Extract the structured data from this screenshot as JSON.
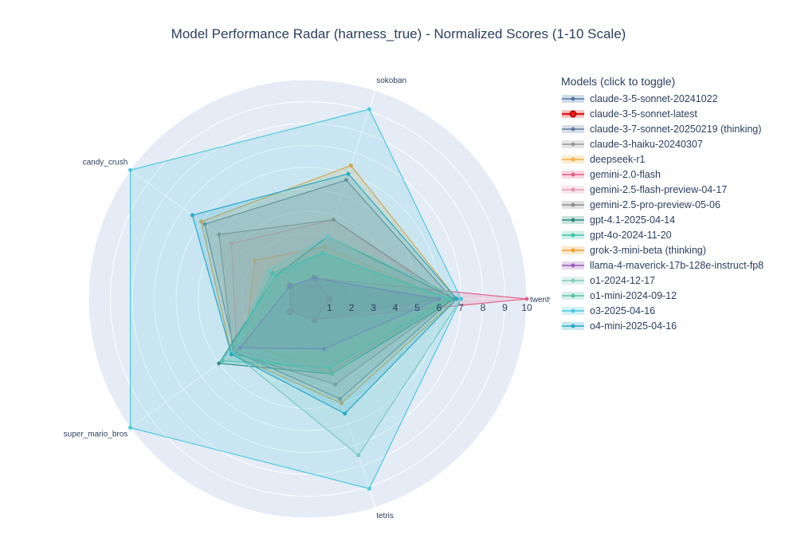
{
  "chart_data": {
    "type": "radar",
    "title": "Model Performance Radar (harness_true) - Normalized Scores (1-10 Scale)",
    "axes": [
      "twenty_forty_eight",
      "sokoban",
      "candy_crush",
      "super_mario_bros",
      "tetris"
    ],
    "axis_tick_labels": [
      "twenty_",
      "sokoban",
      "candy_crush",
      "super_mario_bros",
      "tetris"
    ],
    "radial_range": [
      0,
      10
    ],
    "radial_ticks": [
      1,
      2,
      3,
      4,
      5,
      6,
      7,
      8,
      9,
      10
    ],
    "legend": {
      "title": "Models (click to toggle)",
      "placement": "right"
    },
    "series": [
      {
        "name": "claude-3-5-sonnet-20241022",
        "color": "#4c78a8",
        "values": [
          6.0,
          1.0,
          1.0,
          1.0,
          1.0
        ]
      },
      {
        "name": "claude-3-5-sonnet-latest",
        "color": "#e31a1c",
        "values": [
          1.0,
          1.0,
          1.0,
          1.0,
          1.0
        ],
        "highlight": true
      },
      {
        "name": "claude-3-7-sonnet-20250219 (thinking)",
        "color": "#5f7f9f",
        "values": [
          6.6,
          5.7,
          5.8,
          4.1,
          4.8
        ]
      },
      {
        "name": "claude-3-haiku-20240307",
        "color": "#999999",
        "values": [
          6.0,
          1.0,
          1.0,
          1.0,
          1.0
        ]
      },
      {
        "name": "deepseek-r1",
        "color": "#f5b041",
        "values": [
          6.3,
          2.5,
          3.0,
          3.5,
          3.5
        ]
      },
      {
        "name": "gemini-2.0-flash",
        "color": "#e45f86",
        "values": [
          10.0,
          1.0,
          1.0,
          1.0,
          1.0
        ]
      },
      {
        "name": "gemini-2.5-flash-preview-04-17",
        "color": "#e89ab5",
        "values": [
          6.4,
          3.8,
          4.3,
          4.0,
          3.5
        ]
      },
      {
        "name": "gemini-2.5-pro-preview-05-06",
        "color": "#8c8c8c",
        "values": [
          6.6,
          3.8,
          5.0,
          4.2,
          4.1
        ]
      },
      {
        "name": "gpt-4.1-2025-04-14",
        "color": "#2e8b7f",
        "values": [
          6.7,
          3.0,
          1.8,
          5.0,
          3.6
        ]
      },
      {
        "name": "gpt-4o-2024-11-20",
        "color": "#3cc4a8",
        "values": [
          6.5,
          2.2,
          2.0,
          4.3,
          3.6
        ]
      },
      {
        "name": "grok-3-mini-beta (thinking)",
        "color": "#f0a030",
        "values": [
          6.8,
          6.4,
          6.0,
          4.3,
          5.0
        ]
      },
      {
        "name": "llama-4-maverick-17b-128e-instruct-fp8",
        "color": "#9b59b6",
        "values": [
          6.0,
          1.0,
          1.0,
          3.8,
          2.4
        ]
      },
      {
        "name": "o1-2024-12-17",
        "color": "#7fcdbb",
        "values": [
          7.0,
          3.0,
          2.2,
          4.2,
          7.5
        ]
      },
      {
        "name": "o1-mini-2024-09-12",
        "color": "#55c4a8",
        "values": [
          6.4,
          2.2,
          1.8,
          4.8,
          3.3
        ]
      },
      {
        "name": "o3-2025-04-16",
        "color": "#4dc9e0",
        "values": [
          7.0,
          9.1,
          10.0,
          10.0,
          9.1
        ]
      },
      {
        "name": "o4-mini-2025-04-16",
        "color": "#26a9c9",
        "values": [
          6.8,
          6.0,
          6.5,
          4.3,
          5.5
        ]
      }
    ]
  }
}
